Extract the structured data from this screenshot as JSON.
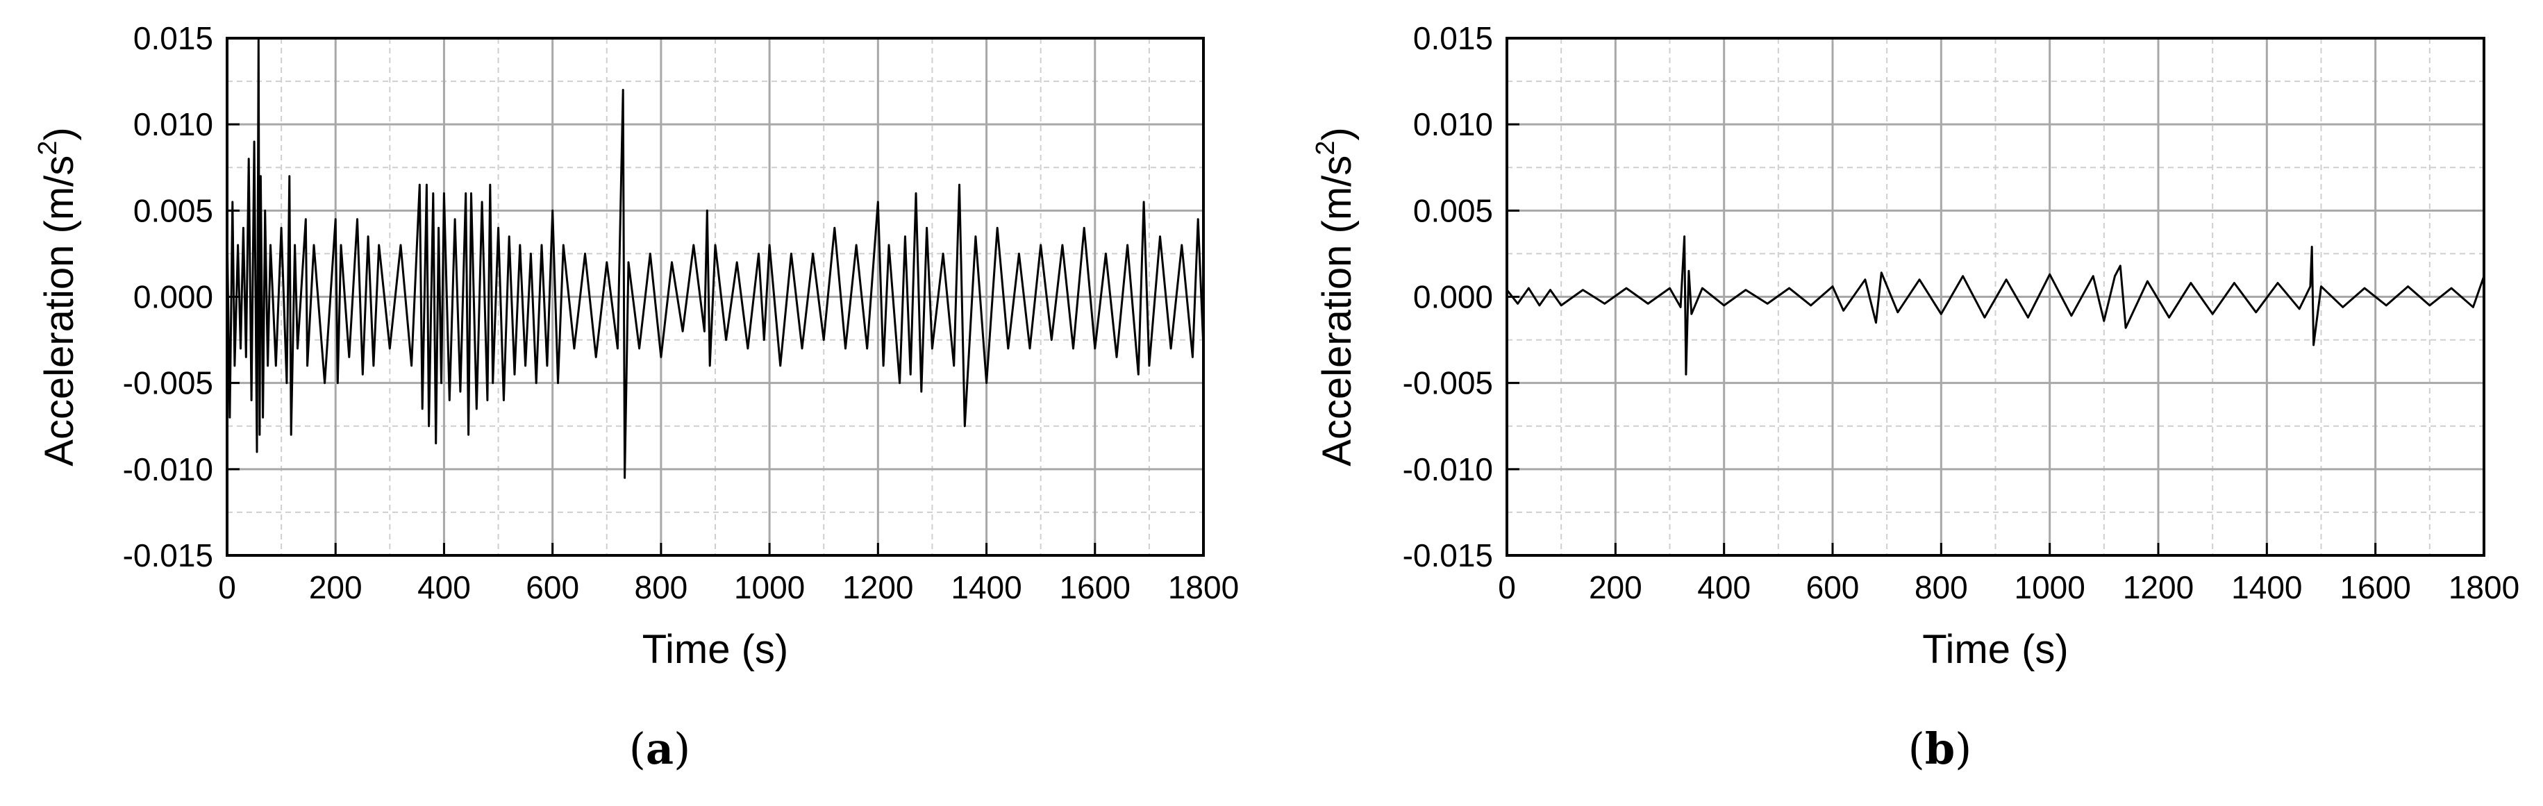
{
  "chart_data": [
    {
      "type": "line",
      "panel_label": [
        "(",
        "a",
        ")"
      ],
      "xlabel": "Time (s)",
      "ylabel": "Acceleration (m/s",
      "ylabel_sup": "2",
      "ylabel_close": ")",
      "xlim": [
        0,
        1800
      ],
      "ylim": [
        -0.015,
        0.015
      ],
      "xticks": [
        0,
        200,
        400,
        600,
        800,
        1000,
        1200,
        1400,
        1600,
        1800
      ],
      "xtick_labels": [
        "0",
        "200",
        "400",
        "600",
        "800",
        "1000",
        "1200",
        "1400",
        "1600",
        "1800"
      ],
      "yticks": [
        -0.015,
        -0.01,
        -0.005,
        0.0,
        0.005,
        0.01,
        0.015
      ],
      "ytick_labels": [
        "-0.015",
        "-0.010",
        "-0.005",
        "0.000",
        "0.005",
        "0.010",
        "0.015"
      ],
      "grid": true,
      "line_color": "#000000",
      "series": [
        {
          "x": [
            0,
            5,
            10,
            14,
            20,
            25,
            30,
            35,
            40,
            45,
            50,
            55,
            58,
            60,
            62,
            66,
            70,
            75,
            80,
            90,
            100,
            110,
            115,
            118,
            125,
            130,
            145,
            148,
            160,
            180,
            200,
            204,
            210,
            225,
            240,
            250,
            260,
            270,
            280,
            300,
            320,
            340,
            355,
            360,
            368,
            372,
            380,
            385,
            390,
            395,
            400,
            410,
            420,
            430,
            440,
            445,
            450,
            460,
            470,
            480,
            485,
            490,
            500,
            510,
            520,
            530,
            540,
            550,
            560,
            570,
            580,
            590,
            600,
            610,
            620,
            640,
            660,
            680,
            700,
            720,
            730,
            733,
            740,
            760,
            780,
            800,
            820,
            840,
            860,
            880,
            885,
            890,
            900,
            920,
            940,
            960,
            980,
            990,
            1000,
            1020,
            1040,
            1060,
            1080,
            1100,
            1120,
            1140,
            1160,
            1180,
            1200,
            1210,
            1220,
            1240,
            1250,
            1260,
            1270,
            1280,
            1290,
            1300,
            1320,
            1340,
            1350,
            1360,
            1380,
            1400,
            1420,
            1440,
            1460,
            1480,
            1500,
            1520,
            1540,
            1560,
            1580,
            1600,
            1620,
            1640,
            1660,
            1680,
            1690,
            1700,
            1720,
            1740,
            1760,
            1780,
            1790,
            1800
          ],
          "y": [
            0.004,
            -0.007,
            0.0055,
            -0.004,
            0.003,
            -0.003,
            0.004,
            -0.0035,
            0.008,
            -0.006,
            0.009,
            -0.009,
            0.015,
            -0.008,
            0.007,
            -0.007,
            0.005,
            -0.004,
            0.003,
            -0.004,
            0.004,
            -0.005,
            0.007,
            -0.008,
            0.003,
            -0.003,
            0.0045,
            -0.004,
            0.003,
            -0.005,
            0.0045,
            -0.005,
            0.003,
            -0.0035,
            0.0045,
            -0.0045,
            0.0035,
            -0.004,
            0.003,
            -0.003,
            0.003,
            -0.004,
            0.0065,
            -0.0065,
            0.0065,
            -0.0075,
            0.006,
            -0.0085,
            0.004,
            -0.005,
            0.006,
            -0.006,
            0.0045,
            -0.0055,
            0.006,
            -0.008,
            0.006,
            -0.0065,
            0.0055,
            -0.006,
            0.0065,
            -0.005,
            0.004,
            -0.006,
            0.0035,
            -0.0045,
            0.003,
            -0.004,
            0.0025,
            -0.005,
            0.003,
            -0.004,
            0.005,
            -0.005,
            0.003,
            -0.003,
            0.0025,
            -0.0035,
            0.002,
            -0.003,
            0.012,
            -0.0105,
            0.002,
            -0.003,
            0.0025,
            -0.0035,
            0.002,
            -0.002,
            0.003,
            -0.002,
            0.005,
            -0.004,
            0.003,
            -0.0025,
            0.002,
            -0.003,
            0.0025,
            -0.0025,
            0.003,
            -0.004,
            0.0025,
            -0.003,
            0.0025,
            -0.0025,
            0.004,
            -0.003,
            0.003,
            -0.003,
            0.0055,
            -0.004,
            0.003,
            -0.005,
            0.0035,
            -0.0045,
            0.006,
            -0.0055,
            0.004,
            -0.003,
            0.0025,
            -0.004,
            0.0065,
            -0.0075,
            0.0035,
            -0.005,
            0.004,
            -0.003,
            0.0025,
            -0.003,
            0.003,
            -0.0025,
            0.003,
            -0.003,
            0.004,
            -0.003,
            0.0025,
            -0.0035,
            0.003,
            -0.0045,
            0.0055,
            -0.004,
            0.0035,
            -0.003,
            0.003,
            -0.0035,
            0.0045,
            -0.003
          ]
        }
      ]
    },
    {
      "type": "line",
      "panel_label": [
        "(",
        "b",
        ")"
      ],
      "xlabel": "Time (s)",
      "ylabel": "Acceleration (m/s",
      "ylabel_sup": "2",
      "ylabel_close": ")",
      "xlim": [
        0,
        1800
      ],
      "ylim": [
        -0.015,
        0.015
      ],
      "xticks": [
        0,
        200,
        400,
        600,
        800,
        1000,
        1200,
        1400,
        1600,
        1800
      ],
      "xtick_labels": [
        "0",
        "200",
        "400",
        "600",
        "800",
        "1000",
        "1200",
        "1400",
        "1600",
        "1800"
      ],
      "yticks": [
        -0.015,
        -0.01,
        -0.005,
        0.0,
        0.005,
        0.01,
        0.015
      ],
      "ytick_labels": [
        "-0.015",
        "-0.010",
        "-0.005",
        "0.000",
        "0.005",
        "0.010",
        "0.015"
      ],
      "grid": true,
      "line_color": "#000000",
      "series": [
        {
          "x": [
            0,
            20,
            40,
            60,
            80,
            100,
            140,
            180,
            220,
            260,
            300,
            320,
            327,
            330,
            335,
            340,
            360,
            400,
            440,
            480,
            520,
            560,
            600,
            620,
            660,
            680,
            690,
            720,
            760,
            800,
            840,
            880,
            920,
            960,
            1000,
            1040,
            1080,
            1100,
            1120,
            1130,
            1140,
            1180,
            1220,
            1260,
            1300,
            1340,
            1380,
            1420,
            1460,
            1480,
            1483,
            1486,
            1500,
            1540,
            1580,
            1620,
            1660,
            1700,
            1740,
            1780,
            1800
          ],
          "y": [
            0.0004,
            -0.0004,
            0.0005,
            -0.0005,
            0.0004,
            -0.0005,
            0.0004,
            -0.0004,
            0.0005,
            -0.0004,
            0.0005,
            -0.0006,
            0.0035,
            -0.0045,
            0.0015,
            -0.001,
            0.0005,
            -0.0005,
            0.0004,
            -0.0004,
            0.0005,
            -0.0005,
            0.0006,
            -0.0008,
            0.001,
            -0.0015,
            0.0014,
            -0.0009,
            0.001,
            -0.001,
            0.0012,
            -0.0012,
            0.001,
            -0.0012,
            0.0013,
            -0.0011,
            0.0012,
            -0.0014,
            0.0012,
            0.0018,
            -0.0018,
            0.0009,
            -0.0012,
            0.0008,
            -0.001,
            0.0008,
            -0.0009,
            0.0008,
            -0.0007,
            0.0006,
            0.0029,
            -0.0028,
            0.0006,
            -0.0006,
            0.0005,
            -0.0005,
            0.0006,
            -0.0005,
            0.0005,
            -0.0006,
            0.0012
          ]
        }
      ]
    }
  ]
}
